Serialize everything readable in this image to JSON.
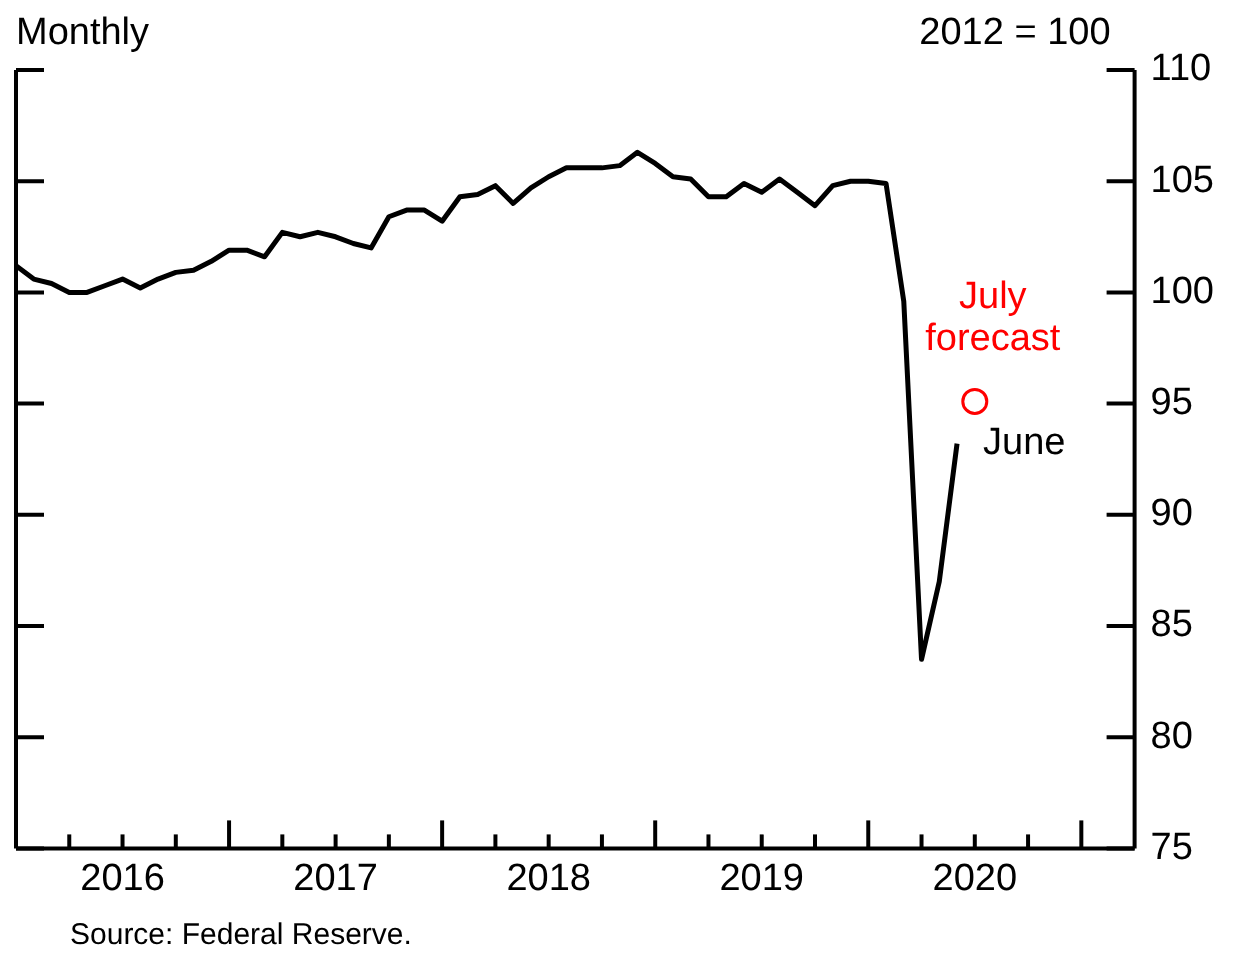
{
  "chart_data": {
    "type": "line",
    "subtitle": "Monthly",
    "ylabel": "2012 = 100",
    "x": [
      "2016-01",
      "2016-02",
      "2016-03",
      "2016-04",
      "2016-05",
      "2016-06",
      "2016-07",
      "2016-08",
      "2016-09",
      "2016-10",
      "2016-11",
      "2016-12",
      "2017-01",
      "2017-02",
      "2017-03",
      "2017-04",
      "2017-05",
      "2017-06",
      "2017-07",
      "2017-08",
      "2017-09",
      "2017-10",
      "2017-11",
      "2017-12",
      "2018-01",
      "2018-02",
      "2018-03",
      "2018-04",
      "2018-05",
      "2018-06",
      "2018-07",
      "2018-08",
      "2018-09",
      "2018-10",
      "2018-11",
      "2018-12",
      "2019-01",
      "2019-02",
      "2019-03",
      "2019-04",
      "2019-05",
      "2019-06",
      "2019-07",
      "2019-08",
      "2019-09",
      "2019-10",
      "2019-11",
      "2019-12",
      "2020-01",
      "2020-02",
      "2020-03",
      "2020-04",
      "2020-05",
      "2020-06"
    ],
    "series": [
      {
        "color": "#000000",
        "values": [
          101.2,
          100.6,
          100.4,
          100.0,
          100.0,
          100.3,
          100.6,
          100.2,
          100.6,
          100.9,
          101.0,
          101.4,
          101.9,
          101.9,
          101.6,
          102.7,
          102.5,
          102.7,
          102.5,
          102.2,
          102.0,
          103.4,
          103.7,
          103.7,
          103.2,
          104.3,
          104.4,
          104.8,
          104.0,
          104.7,
          105.2,
          105.6,
          105.6,
          105.6,
          105.7,
          106.3,
          105.8,
          105.2,
          105.1,
          104.3,
          104.3,
          104.9,
          104.5,
          105.1,
          104.5,
          103.9,
          104.8,
          105.0,
          105.0,
          104.9,
          99.6,
          83.5,
          87.0,
          93.2
        ]
      },
      {
        "type": "scatter",
        "name": "July forecast",
        "color": "#ff0000",
        "marker": "circle",
        "x": [
          "2020-07"
        ],
        "values": [
          95.1
        ]
      }
    ],
    "xlim": [
      "2016-01",
      "2021-04"
    ],
    "xticks": [
      {
        "value": "2016-04",
        "label": null
      },
      {
        "value": "2016-07",
        "label": "2016"
      },
      {
        "value": "2016-10",
        "label": null
      },
      {
        "value": "2017-01",
        "label": null
      },
      {
        "value": "2017-04",
        "label": null
      },
      {
        "value": "2017-07",
        "label": "2017"
      },
      {
        "value": "2017-10",
        "label": null
      },
      {
        "value": "2018-01",
        "label": null
      },
      {
        "value": "2018-04",
        "label": null
      },
      {
        "value": "2018-07",
        "label": "2018"
      },
      {
        "value": "2018-10",
        "label": null
      },
      {
        "value": "2019-01",
        "label": null
      },
      {
        "value": "2019-04",
        "label": null
      },
      {
        "value": "2019-07",
        "label": "2019"
      },
      {
        "value": "2019-10",
        "label": null
      },
      {
        "value": "2020-01",
        "label": null
      },
      {
        "value": "2020-04",
        "label": null
      },
      {
        "value": "2020-07",
        "label": "2020"
      },
      {
        "value": "2020-10",
        "label": null
      },
      {
        "value": "2021-01",
        "label": null
      }
    ],
    "ylim": [
      75,
      110
    ],
    "yticks": [
      75,
      80,
      85,
      90,
      95,
      100,
      105,
      110
    ],
    "annotations": [
      {
        "text": "June",
        "x": "2020-06",
        "y": 93.2
      },
      "Source: Federal Reserve."
    ]
  }
}
